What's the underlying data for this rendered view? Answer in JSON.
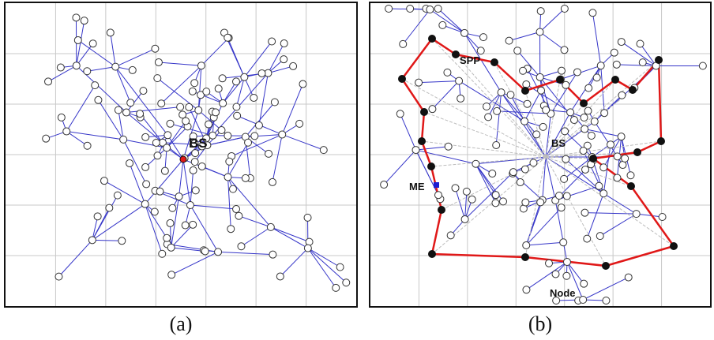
{
  "panels": [
    {
      "caption": "(a)",
      "labels": {
        "bs": "BS"
      }
    },
    {
      "caption": "(b)",
      "labels": {
        "bs": "BS",
        "spp": "SPP",
        "me": "ME",
        "node": "Node"
      }
    }
  ],
  "colors": {
    "grid": "#c8c8c8",
    "tree_link": "#3535c8",
    "tour": "#e01818",
    "shortcut": "#bdbdbd",
    "node_fill": "#ffffff",
    "stop_fill": "#111111",
    "bs_fill": "#e01818",
    "me_fill": "#1c1cd0"
  }
}
